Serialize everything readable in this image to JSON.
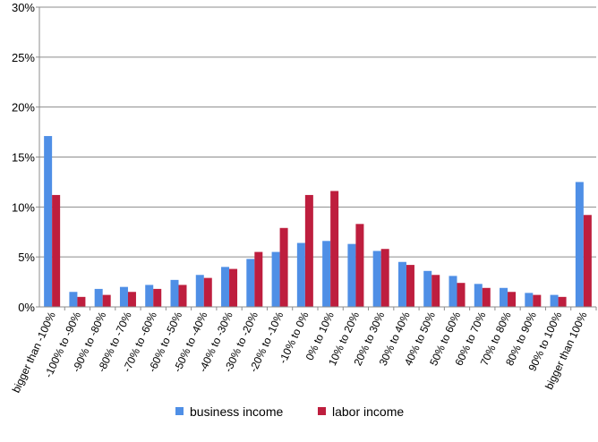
{
  "chart_data": {
    "type": "bar",
    "categories": [
      "bigger than -100%",
      "-100% to -90%",
      "-90% to -80%",
      "-80% to -70%",
      "-70% to -60%",
      "-60% to -50%",
      "-50% to -40%",
      "-40% to -30%",
      "-30% to -20%",
      "-20% to -10%",
      "-10% to 0%",
      "0% to 10%",
      "10% to 20%",
      "20% to 30%",
      "30% to 40%",
      "40% to 50%",
      "50% to 60%",
      "60% to 70%",
      "70% to 80%",
      "80% to 90%",
      "90% to 100%",
      "bigger than 100%"
    ],
    "series": [
      {
        "name": "business income",
        "color": "#4F8FE6",
        "values": [
          17.1,
          1.5,
          1.8,
          2.0,
          2.2,
          2.7,
          3.2,
          4.0,
          4.8,
          5.5,
          6.4,
          6.6,
          6.3,
          5.6,
          4.5,
          3.6,
          3.1,
          2.3,
          1.9,
          1.4,
          1.2,
          12.5
        ]
      },
      {
        "name": "labor income",
        "color": "#BE1E3E",
        "values": [
          11.2,
          1.0,
          1.2,
          1.5,
          1.8,
          2.2,
          2.9,
          3.8,
          5.5,
          7.9,
          11.2,
          11.6,
          8.3,
          5.8,
          4.2,
          3.2,
          2.4,
          1.9,
          1.5,
          1.2,
          1.0,
          9.2
        ]
      }
    ],
    "y_ticks": [
      "0%",
      "5%",
      "10%",
      "15%",
      "20%",
      "25%",
      "30%"
    ],
    "ylim": [
      0,
      30
    ],
    "grid": true,
    "legend": "bottom",
    "title": "",
    "xlabel": "",
    "ylabel": ""
  }
}
